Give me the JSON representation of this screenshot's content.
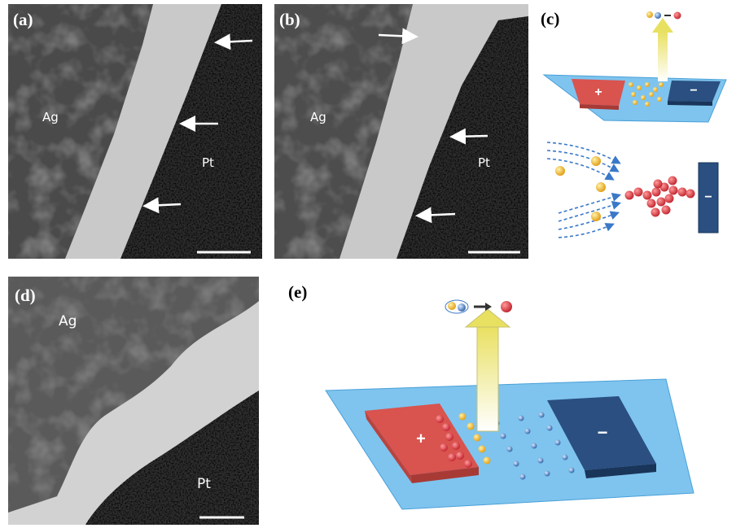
{
  "panels": {
    "a": {
      "label": "(a)",
      "ag": "Ag",
      "pt": "Pt"
    },
    "b": {
      "label": "(b)",
      "ag": "Ag",
      "pt": "Pt"
    },
    "c": {
      "label": "(c)",
      "anode": "+",
      "cathode": "−",
      "electrode": "−"
    },
    "d": {
      "label": "(d)",
      "ag": "Ag",
      "pt": "Pt"
    },
    "e": {
      "label": "(e)",
      "anode": "+",
      "cathode": "−"
    }
  }
}
